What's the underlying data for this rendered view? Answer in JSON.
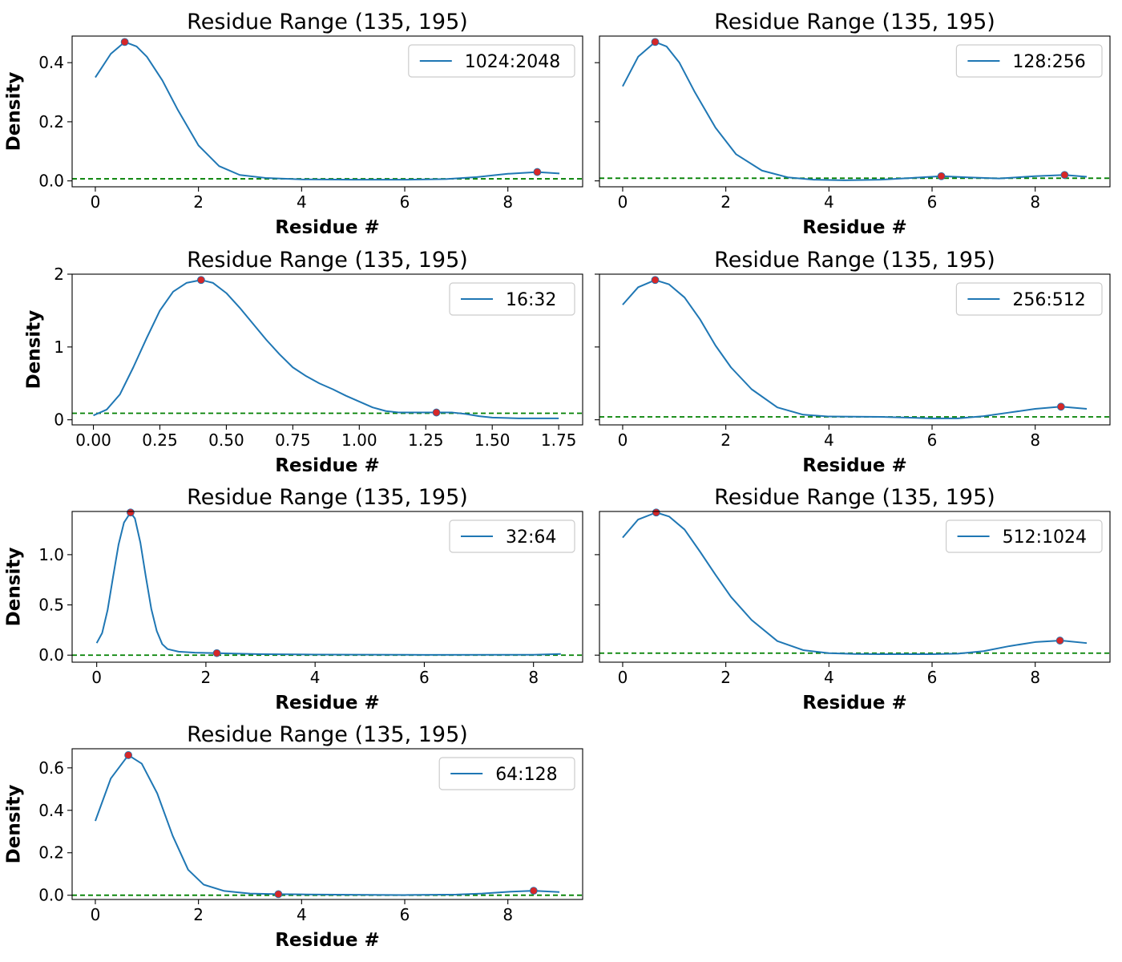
{
  "colors": {
    "curve": "#1f77b4",
    "peak_marker": "#d62728",
    "threshold": "#008000",
    "legend_border": "#cccccc"
  },
  "chart_data": [
    {
      "type": "line",
      "title": "Residue Range (135, 195)",
      "xlabel": "Residue #",
      "ylabel": "Density",
      "show_ylabel": true,
      "xlim": [
        -0.45,
        9.45
      ],
      "ylim": [
        -0.02,
        0.49
      ],
      "xticks": [
        0,
        2,
        4,
        6,
        8
      ],
      "xtick_labels": [
        "0",
        "2",
        "4",
        "6",
        "8"
      ],
      "yticks": [
        0.0,
        0.2,
        0.4
      ],
      "ytick_labels": [
        "0.0",
        "0.2",
        "0.4"
      ],
      "legend": "upper right",
      "threshold": 0.007,
      "series": [
        {
          "name": "1024:2048",
          "x": [
            0,
            0.3,
            0.57,
            0.8,
            1.0,
            1.3,
            1.6,
            2.0,
            2.4,
            2.8,
            3.3,
            4.0,
            5.0,
            6.0,
            6.8,
            7.4,
            8.0,
            8.57,
            9.0
          ],
          "y": [
            0.35,
            0.43,
            0.47,
            0.455,
            0.42,
            0.34,
            0.24,
            0.12,
            0.05,
            0.02,
            0.01,
            0.005,
            0.004,
            0.004,
            0.006,
            0.013,
            0.024,
            0.03,
            0.025
          ]
        }
      ],
      "peaks": {
        "x": [
          0.57,
          8.57
        ],
        "y": [
          0.47,
          0.03
        ]
      }
    },
    {
      "type": "line",
      "title": "Residue Range (135, 195)",
      "xlabel": "Residue #",
      "ylabel": "Density",
      "show_ylabel": false,
      "xlim": [
        -0.45,
        9.45
      ],
      "ylim": [
        -0.02,
        0.49
      ],
      "xticks": [
        0,
        2,
        4,
        6,
        8
      ],
      "xtick_labels": [
        "0",
        "2",
        "4",
        "6",
        "8"
      ],
      "yticks": [
        0.0,
        0.2,
        0.4
      ],
      "ytick_labels": [
        "",
        "",
        ""
      ],
      "legend": "upper right",
      "threshold": 0.009,
      "series": [
        {
          "name": "128:256",
          "x": [
            0,
            0.3,
            0.63,
            0.85,
            1.1,
            1.4,
            1.8,
            2.2,
            2.7,
            3.2,
            3.7,
            4.3,
            5.0,
            5.6,
            6.18,
            6.7,
            7.3,
            8.0,
            8.57,
            9.0
          ],
          "y": [
            0.32,
            0.42,
            0.47,
            0.455,
            0.4,
            0.3,
            0.18,
            0.09,
            0.035,
            0.012,
            0.004,
            0.002,
            0.004,
            0.01,
            0.016,
            0.012,
            0.008,
            0.016,
            0.02,
            0.014
          ]
        }
      ],
      "peaks": {
        "x": [
          0.63,
          6.18,
          8.57
        ],
        "y": [
          0.47,
          0.016,
          0.02
        ]
      }
    },
    {
      "type": "line",
      "title": "Residue Range (135, 195)",
      "xlabel": "Residue #",
      "ylabel": "Density",
      "show_ylabel": true,
      "xlim": [
        -0.08,
        1.84
      ],
      "ylim": [
        -0.07,
        2.0
      ],
      "xticks": [
        0,
        0.25,
        0.5,
        0.75,
        1.0,
        1.25,
        1.5,
        1.75
      ],
      "xtick_labels": [
        "0.00",
        "0.25",
        "0.50",
        "0.75",
        "1.00",
        "1.25",
        "1.50",
        "1.75"
      ],
      "yticks": [
        0,
        1,
        2
      ],
      "ytick_labels": [
        "0",
        "1",
        "2"
      ],
      "legend": "upper right",
      "threshold": 0.09,
      "series": [
        {
          "name": "16:32",
          "x": [
            0,
            0.05,
            0.1,
            0.15,
            0.2,
            0.25,
            0.3,
            0.35,
            0.405,
            0.45,
            0.5,
            0.55,
            0.6,
            0.65,
            0.7,
            0.75,
            0.8,
            0.85,
            0.9,
            0.95,
            1.0,
            1.05,
            1.1,
            1.15,
            1.2,
            1.25,
            1.3,
            1.35,
            1.4,
            1.45,
            1.5,
            1.6,
            1.75
          ],
          "y": [
            0.06,
            0.14,
            0.35,
            0.72,
            1.12,
            1.5,
            1.76,
            1.88,
            1.92,
            1.88,
            1.74,
            1.54,
            1.32,
            1.1,
            0.9,
            0.72,
            0.6,
            0.5,
            0.42,
            0.33,
            0.25,
            0.17,
            0.12,
            0.1,
            0.1,
            0.1,
            0.1,
            0.1,
            0.08,
            0.05,
            0.03,
            0.02,
            0.02
          ]
        }
      ],
      "peaks": {
        "x": [
          0.405,
          1.29
        ],
        "y": [
          1.92,
          0.1
        ]
      }
    },
    {
      "type": "line",
      "title": "Residue Range (135, 195)",
      "xlabel": "Residue #",
      "ylabel": "Density",
      "show_ylabel": false,
      "xlim": [
        -0.45,
        9.45
      ],
      "ylim": [
        -0.07,
        2.0
      ],
      "xticks": [
        0,
        2,
        4,
        6,
        8
      ],
      "xtick_labels": [
        "0",
        "2",
        "4",
        "6",
        "8"
      ],
      "yticks": [
        0,
        1,
        2
      ],
      "ytick_labels": [
        "",
        "",
        ""
      ],
      "legend": "upper right",
      "threshold": 0.04,
      "series": [
        {
          "name": "256:512",
          "x": [
            0,
            0.3,
            0.63,
            0.9,
            1.2,
            1.5,
            1.8,
            2.1,
            2.5,
            3.0,
            3.5,
            4.0,
            5.0,
            6.0,
            6.5,
            7.0,
            7.5,
            8.0,
            8.5,
            9.0
          ],
          "y": [
            1.58,
            1.82,
            1.92,
            1.86,
            1.68,
            1.38,
            1.02,
            0.72,
            0.42,
            0.17,
            0.07,
            0.045,
            0.04,
            0.02,
            0.02,
            0.05,
            0.1,
            0.15,
            0.18,
            0.15
          ]
        }
      ],
      "peaks": {
        "x": [
          0.63,
          8.5
        ],
        "y": [
          1.92,
          0.18
        ]
      }
    },
    {
      "type": "line",
      "title": "Residue Range (135, 195)",
      "xlabel": "Residue #",
      "ylabel": "Density",
      "show_ylabel": true,
      "xlim": [
        -0.45,
        8.9
      ],
      "ylim": [
        -0.07,
        1.43
      ],
      "xticks": [
        0,
        2,
        4,
        6,
        8
      ],
      "xtick_labels": [
        "0",
        "2",
        "4",
        "6",
        "8"
      ],
      "yticks": [
        0.0,
        0.5,
        1.0
      ],
      "ytick_labels": [
        "0.0",
        "0.5",
        "1.0"
      ],
      "legend": "upper right",
      "threshold": 0.0,
      "series": [
        {
          "name": "32:64",
          "x": [
            0,
            0.1,
            0.2,
            0.3,
            0.4,
            0.5,
            0.62,
            0.7,
            0.8,
            0.9,
            1.0,
            1.1,
            1.2,
            1.3,
            1.5,
            1.8,
            2.2,
            2.6,
            3.0,
            4.0,
            6.0,
            8.0,
            8.5
          ],
          "y": [
            0.12,
            0.22,
            0.45,
            0.78,
            1.1,
            1.32,
            1.42,
            1.36,
            1.12,
            0.78,
            0.46,
            0.24,
            0.11,
            0.06,
            0.035,
            0.025,
            0.02,
            0.015,
            0.01,
            0.006,
            0.003,
            0.004,
            0.012
          ]
        }
      ],
      "peaks": {
        "x": [
          0.62,
          2.2
        ],
        "y": [
          1.42,
          0.02
        ]
      }
    },
    {
      "type": "line",
      "title": "Residue Range (135, 195)",
      "xlabel": "Residue #",
      "ylabel": "Density",
      "show_ylabel": false,
      "xlim": [
        -0.45,
        9.45
      ],
      "ylim": [
        -0.07,
        1.43
      ],
      "xticks": [
        0,
        2,
        4,
        6,
        8
      ],
      "xtick_labels": [
        "0",
        "2",
        "4",
        "6",
        "8"
      ],
      "yticks": [
        0.0,
        0.5,
        1.0
      ],
      "ytick_labels": [
        "",
        "",
        ""
      ],
      "legend": "upper right",
      "threshold": 0.02,
      "series": [
        {
          "name": "512:1024",
          "x": [
            0,
            0.3,
            0.65,
            0.9,
            1.2,
            1.5,
            1.8,
            2.1,
            2.5,
            3.0,
            3.5,
            4.0,
            4.5,
            5.0,
            6.0,
            6.5,
            7.0,
            7.5,
            8.0,
            8.5,
            9.0
          ],
          "y": [
            1.17,
            1.35,
            1.42,
            1.38,
            1.25,
            1.03,
            0.8,
            0.58,
            0.35,
            0.14,
            0.05,
            0.02,
            0.012,
            0.01,
            0.01,
            0.015,
            0.04,
            0.09,
            0.13,
            0.145,
            0.12
          ]
        }
      ],
      "peaks": {
        "x": [
          0.65,
          8.48
        ],
        "y": [
          1.42,
          0.145
        ]
      }
    },
    {
      "type": "line",
      "title": "Residue Range (135, 195)",
      "xlabel": "Residue #",
      "ylabel": "Density",
      "show_ylabel": true,
      "xlim": [
        -0.45,
        9.45
      ],
      "ylim": [
        -0.02,
        0.69
      ],
      "xticks": [
        0,
        2,
        4,
        6,
        8
      ],
      "xtick_labels": [
        "0",
        "2",
        "4",
        "6",
        "8"
      ],
      "yticks": [
        0.0,
        0.2,
        0.4,
        0.6
      ],
      "ytick_labels": [
        "0.0",
        "0.2",
        "0.4",
        "0.6"
      ],
      "legend": "upper right",
      "threshold": 0.0,
      "series": [
        {
          "name": "64:128",
          "x": [
            0,
            0.3,
            0.64,
            0.9,
            1.2,
            1.5,
            1.8,
            2.1,
            2.5,
            3.0,
            3.55,
            4.0,
            5.0,
            6.0,
            7.0,
            7.5,
            8.0,
            8.5,
            9.0
          ],
          "y": [
            0.35,
            0.55,
            0.66,
            0.62,
            0.48,
            0.28,
            0.12,
            0.05,
            0.02,
            0.008,
            0.005,
            0.004,
            0.002,
            0.001,
            0.003,
            0.008,
            0.016,
            0.021,
            0.015
          ]
        }
      ],
      "peaks": {
        "x": [
          0.64,
          3.55,
          8.5
        ],
        "y": [
          0.66,
          0.005,
          0.021
        ]
      }
    }
  ]
}
